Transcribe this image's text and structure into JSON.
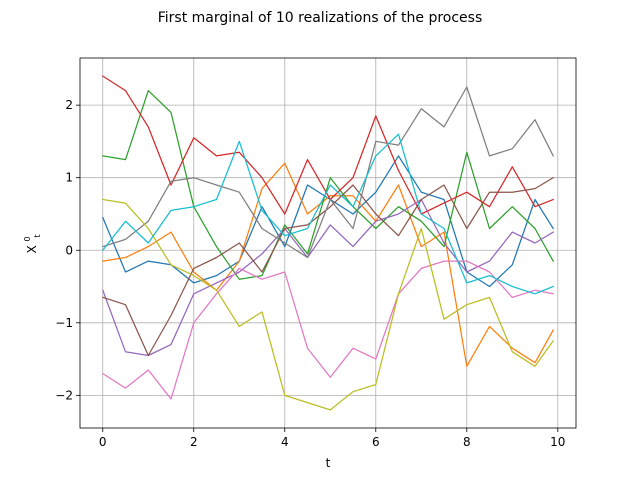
{
  "chart_data": {
    "type": "line",
    "title": "First marginal of 10 realizations of the process",
    "xlabel": "t",
    "ylabel": "X",
    "ylabel_superscript": "0",
    "ylabel_subscript": "t",
    "xlim": [
      -0.5,
      10.4
    ],
    "ylim": [
      -2.45,
      2.65
    ],
    "xticks": [
      0,
      2,
      4,
      6,
      8,
      10
    ],
    "xtick_labels": [
      "0",
      "2",
      "4",
      "6",
      "8",
      "10"
    ],
    "yticks": [
      -2,
      -1,
      0,
      1,
      2
    ],
    "ytick_labels": [
      "−2",
      "−1",
      "0",
      "1",
      "2"
    ],
    "grid": true,
    "legend": "none",
    "series": [
      {
        "color": "#1f77b4",
        "x": [
          0,
          0.5,
          1,
          1.5,
          2,
          2.5,
          3,
          3.5,
          4,
          4.5,
          5,
          5.5,
          6,
          6.5,
          7,
          7.5,
          8,
          8.5,
          9,
          9.5,
          9.9
        ],
        "y": [
          0.45,
          -0.3,
          -0.15,
          -0.2,
          -0.45,
          -0.35,
          -0.15,
          0.6,
          0.05,
          0.9,
          0.7,
          0.5,
          0.8,
          1.3,
          0.8,
          0.7,
          -0.3,
          -0.5,
          -0.2,
          0.7,
          0.3
        ]
      },
      {
        "color": "#ff7f0e",
        "x": [
          0,
          0.5,
          1,
          1.5,
          2,
          2.5,
          3,
          3.5,
          4,
          4.5,
          5,
          5.5,
          6,
          6.5,
          7,
          7.5,
          8,
          8.5,
          9,
          9.5,
          9.9
        ],
        "y": [
          -0.15,
          -0.1,
          0.05,
          0.25,
          -0.3,
          -0.55,
          -0.15,
          0.85,
          1.2,
          0.5,
          0.75,
          0.75,
          0.4,
          0.9,
          0.05,
          0.25,
          -1.6,
          -1.05,
          -1.35,
          -1.55,
          -1.1
        ]
      },
      {
        "color": "#2ca02c",
        "x": [
          0,
          0.5,
          1,
          1.5,
          2,
          2.5,
          3,
          3.5,
          4,
          4.5,
          5,
          5.5,
          6,
          6.5,
          7,
          7.5,
          8,
          8.5,
          9,
          9.5,
          9.9
        ],
        "y": [
          1.3,
          1.25,
          2.2,
          1.9,
          0.6,
          0.05,
          -0.4,
          -0.35,
          0.35,
          -0.05,
          1.0,
          0.6,
          0.3,
          0.6,
          0.4,
          0.05,
          1.35,
          0.3,
          0.6,
          0.3,
          -0.15
        ]
      },
      {
        "color": "#d62728",
        "x": [
          0,
          0.5,
          1,
          1.5,
          2,
          2.5,
          3,
          3.5,
          4,
          4.5,
          5,
          5.5,
          6,
          6.5,
          7,
          7.5,
          8,
          8.5,
          9,
          9.5,
          9.9
        ],
        "y": [
          2.4,
          2.2,
          1.7,
          0.9,
          1.55,
          1.3,
          1.35,
          1.0,
          0.5,
          1.25,
          0.7,
          1.0,
          1.85,
          1.1,
          0.5,
          0.65,
          0.8,
          0.6,
          1.15,
          0.6,
          0.7
        ]
      },
      {
        "color": "#9467bd",
        "x": [
          0,
          0.5,
          1,
          1.5,
          2,
          2.5,
          3,
          3.5,
          4,
          4.5,
          5,
          5.5,
          6,
          6.5,
          7,
          7.5,
          8,
          8.5,
          9,
          9.5,
          9.9
        ],
        "y": [
          -0.55,
          -1.4,
          -1.45,
          -1.3,
          -0.6,
          -0.45,
          -0.3,
          -0.05,
          0.3,
          -0.1,
          0.35,
          0.05,
          0.4,
          0.5,
          0.7,
          0.1,
          -0.3,
          -0.15,
          0.25,
          0.1,
          0.25
        ]
      },
      {
        "color": "#8c564b",
        "x": [
          0,
          0.5,
          1,
          1.5,
          2,
          2.5,
          3,
          3.5,
          4,
          4.5,
          5,
          5.5,
          6,
          6.5,
          7,
          7.5,
          8,
          8.5,
          9,
          9.5,
          9.9
        ],
        "y": [
          -0.65,
          -0.75,
          -1.45,
          -0.9,
          -0.25,
          -0.1,
          0.1,
          -0.3,
          0.3,
          0.35,
          0.6,
          0.9,
          0.5,
          0.2,
          0.7,
          0.9,
          0.3,
          0.8,
          0.8,
          0.85,
          1.0
        ]
      },
      {
        "color": "#e377c2",
        "x": [
          0,
          0.5,
          1,
          1.5,
          2,
          2.5,
          3,
          3.5,
          4,
          4.5,
          5,
          5.5,
          6,
          6.5,
          7,
          7.5,
          8,
          8.5,
          9,
          9.5,
          9.9
        ],
        "y": [
          -1.7,
          -1.9,
          -1.65,
          -2.05,
          -1.0,
          -0.6,
          -0.25,
          -0.4,
          -0.3,
          -1.35,
          -1.75,
          -1.35,
          -1.5,
          -0.6,
          -0.25,
          -0.15,
          -0.15,
          -0.3,
          -0.65,
          -0.55,
          -0.6
        ]
      },
      {
        "color": "#7f7f7f",
        "x": [
          0,
          0.5,
          1,
          1.5,
          2,
          2.5,
          3,
          3.5,
          4,
          4.5,
          5,
          5.5,
          6,
          6.5,
          7,
          7.5,
          8,
          8.5,
          9,
          9.5,
          9.9
        ],
        "y": [
          0.05,
          0.15,
          0.4,
          0.95,
          1.0,
          0.9,
          0.8,
          0.3,
          0.1,
          -0.1,
          0.7,
          0.3,
          1.5,
          1.45,
          1.95,
          1.7,
          2.25,
          1.3,
          1.4,
          1.8,
          1.3
        ]
      },
      {
        "color": "#bcbd22",
        "x": [
          0,
          0.5,
          1,
          1.5,
          2,
          2.5,
          3,
          3.5,
          4,
          4.5,
          5,
          5.5,
          6,
          6.5,
          7,
          7.5,
          8,
          8.5,
          9,
          9.5,
          9.9
        ],
        "y": [
          0.7,
          0.65,
          0.3,
          -0.2,
          -0.35,
          -0.55,
          -1.05,
          -0.85,
          -2.0,
          -2.1,
          -2.2,
          -1.95,
          -1.85,
          -0.6,
          0.3,
          -0.95,
          -0.75,
          -0.65,
          -1.4,
          -1.6,
          -1.25
        ]
      },
      {
        "color": "#17becf",
        "x": [
          0,
          0.5,
          1,
          1.5,
          2,
          2.5,
          3,
          3.5,
          4,
          4.5,
          5,
          5.5,
          6,
          6.5,
          7,
          7.5,
          8,
          8.5,
          9,
          9.5,
          9.9
        ],
        "y": [
          0.0,
          0.4,
          0.1,
          0.55,
          0.6,
          0.7,
          1.5,
          0.55,
          0.2,
          0.3,
          0.9,
          0.6,
          1.3,
          1.6,
          0.5,
          0.3,
          -0.45,
          -0.35,
          -0.5,
          -0.6,
          -0.5
        ]
      }
    ]
  }
}
